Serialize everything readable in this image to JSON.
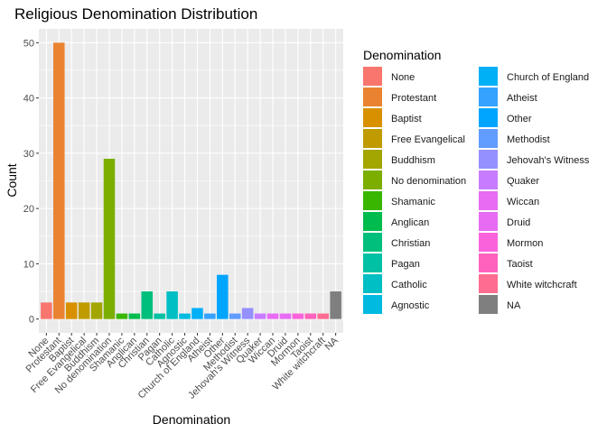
{
  "chart_data": {
    "type": "bar",
    "title": "Religious Denomination Distribution",
    "xlabel": "Denomination",
    "ylabel": "Count",
    "ylim": [
      -2.5,
      52.5
    ],
    "yticks": [
      0,
      10,
      20,
      30,
      40,
      50
    ],
    "grid": true,
    "legend_title": "Denomination",
    "legend_position": "right",
    "categories": [
      "None",
      "Protestant",
      "Baptist",
      "Free Evangelical",
      "Buddhism",
      "No denomination",
      "Shamanic",
      "Anglican",
      "Christian",
      "Pagan",
      "Catholic",
      "Agnostic",
      "Church of England",
      "Atheist",
      "Other",
      "Methodist",
      "Jehovah's Witness",
      "Quaker",
      "Wiccan",
      "Druid",
      "Mormon",
      "Taoist",
      "White witchcraft",
      "NA"
    ],
    "values": [
      3,
      50,
      3,
      3,
      3,
      29,
      1,
      1,
      5,
      1,
      5,
      1,
      2,
      1,
      8,
      1,
      2,
      1,
      1,
      1,
      1,
      1,
      1,
      5
    ],
    "colors": [
      "#F8766D",
      "#EA8331",
      "#D89000",
      "#C09B00",
      "#A3A500",
      "#7CAE00",
      "#39B600",
      "#00BB4E",
      "#00BF7D",
      "#00C1A3",
      "#00BFC4",
      "#00BAE0",
      "#00B0F6",
      "#35A2FF",
      "#00A5FF",
      "#619CFF",
      "#9590FF",
      "#C77CFF",
      "#E76BF3",
      "#E76BF3",
      "#FA62DB",
      "#FF62BC",
      "#FF6C91",
      "#7F7F7F"
    ]
  }
}
